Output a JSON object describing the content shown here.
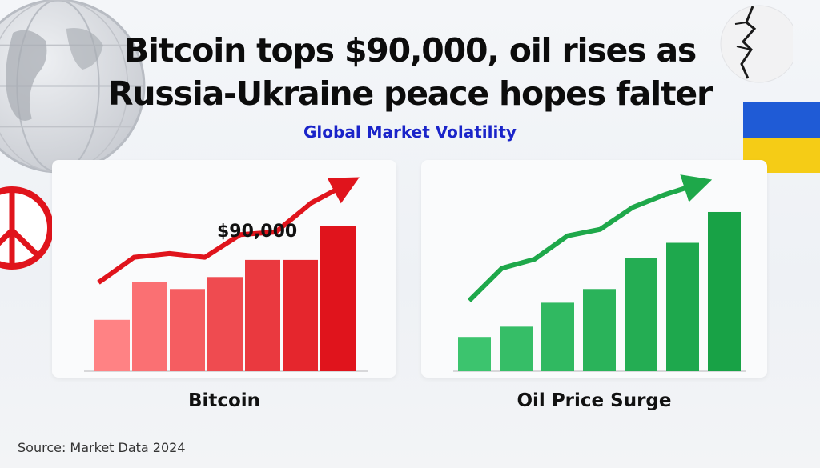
{
  "headline": {
    "line1": "Bitcoin tops $90,000, oil rises as",
    "line2": "Russia-Ukraine peace hopes falter"
  },
  "subtitle": "Global Market Volatility",
  "source": "Source: Market Data 2024",
  "icons": {
    "globe": "globe-icon",
    "peace": "peace-sign-icon",
    "crack": "crack-icon",
    "flag": "ukraine-flag-icon"
  },
  "colors": {
    "bitcoin": "#e0141c",
    "oil": "#1ea84a",
    "subtitle": "#1a24c9",
    "flag_blue": "#1f5bd6",
    "flag_yellow": "#f5cc16"
  },
  "charts": {
    "bitcoin": {
      "label": "Bitcoin",
      "annotation": "$90,000",
      "bars": [
        0.3,
        0.52,
        0.48,
        0.55,
        0.65,
        0.65,
        0.85
      ],
      "trend": [
        0.22,
        0.42,
        0.45,
        0.42,
        0.6,
        0.62,
        0.85,
        1.0
      ]
    },
    "oil": {
      "label": "Oil Price Surge",
      "bars": [
        0.2,
        0.26,
        0.4,
        0.48,
        0.66,
        0.75,
        0.93
      ],
      "trend": [
        0.1,
        0.35,
        0.42,
        0.6,
        0.65,
        0.82,
        0.92,
        1.0
      ]
    }
  }
}
